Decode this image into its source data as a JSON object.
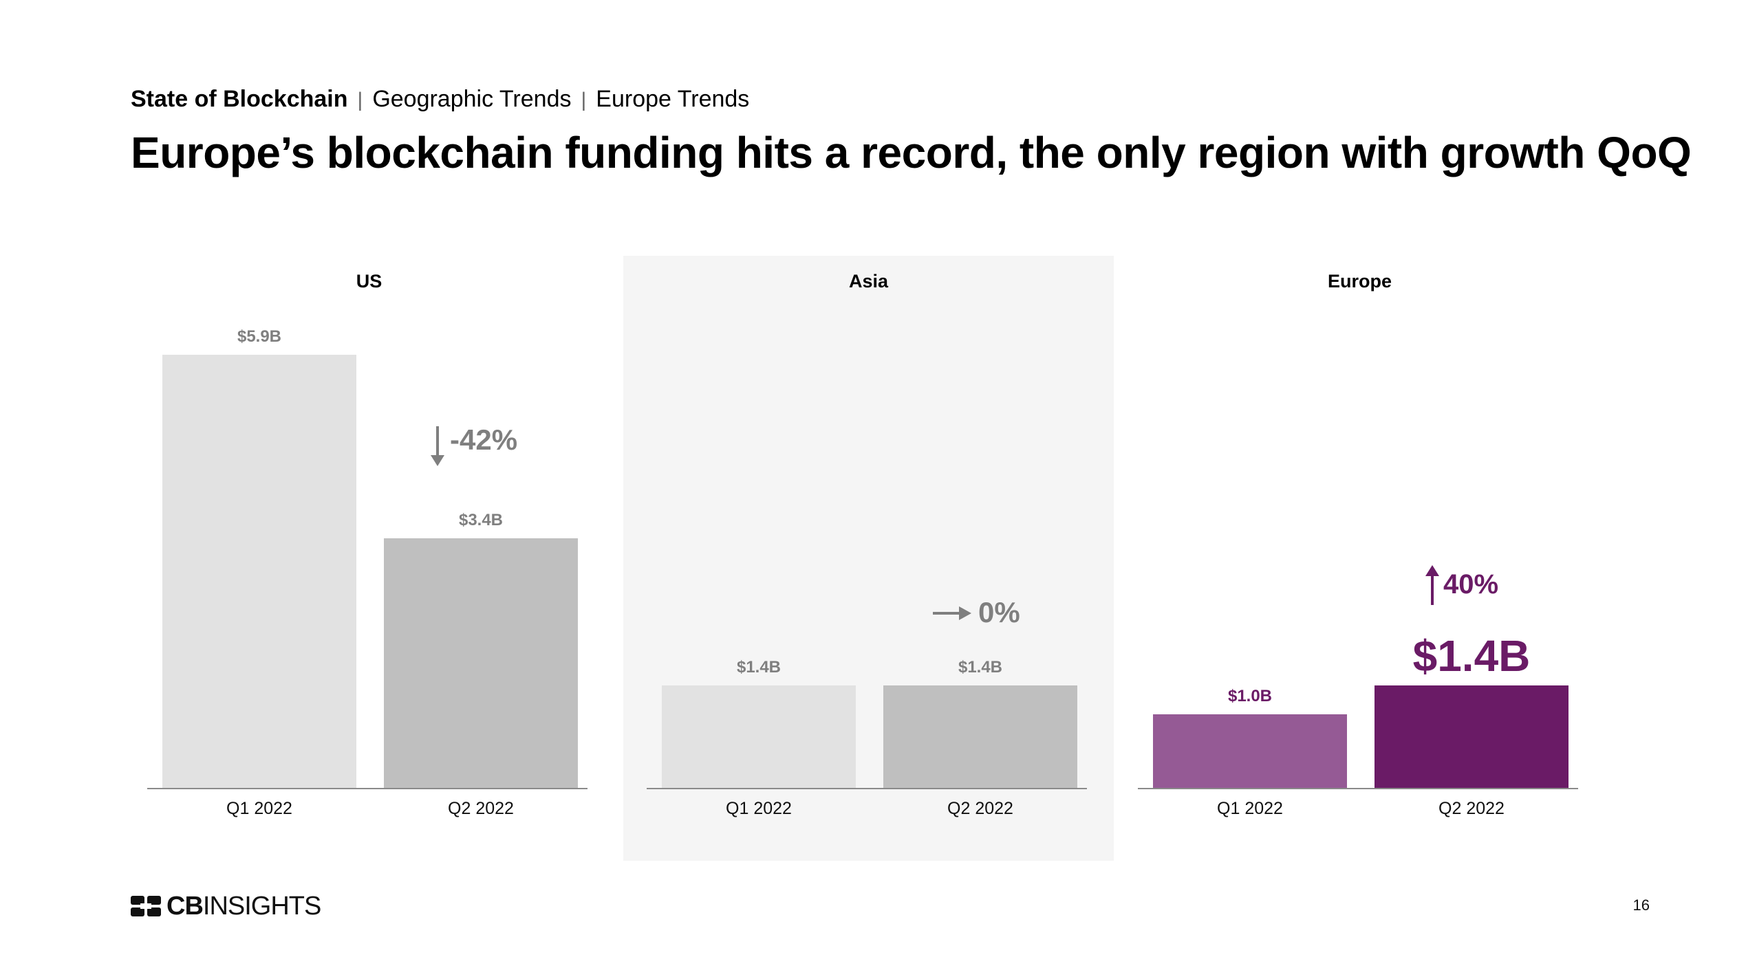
{
  "breadcrumb": {
    "main": "State of Blockchain",
    "separator": "|",
    "level2": "Geographic Trends",
    "level3": "Europe Trends"
  },
  "title": "Europe’s blockchain funding hits a record, the only region with growth QoQ",
  "chart_data": [
    {
      "type": "bar",
      "title": "US",
      "categories": [
        "Q1 2022",
        "Q2 2022"
      ],
      "values": [
        5.9,
        3.4
      ],
      "value_labels": [
        "$5.9B",
        "$3.4B"
      ],
      "unit": "$B",
      "ylim": [
        0,
        5.9
      ],
      "change": "-42%",
      "change_direction": "down",
      "colors": [
        "#e2e2e2",
        "#bfbfbf"
      ],
      "label_color": "#7f7f7f"
    },
    {
      "type": "bar",
      "title": "Asia",
      "categories": [
        "Q1 2022",
        "Q2 2022"
      ],
      "values": [
        1.4,
        1.4
      ],
      "value_labels": [
        "$1.4B",
        "$1.4B"
      ],
      "unit": "$B",
      "ylim": [
        0,
        5.9
      ],
      "change": "0%",
      "change_direction": "flat",
      "colors": [
        "#e2e2e2",
        "#bfbfbf"
      ],
      "label_color": "#7f7f7f"
    },
    {
      "type": "bar",
      "title": "Europe",
      "categories": [
        "Q1 2022",
        "Q2 2022"
      ],
      "values": [
        1.0,
        1.4
      ],
      "value_labels": [
        "$1.0B",
        "$1.4B"
      ],
      "unit": "$B",
      "ylim": [
        0,
        5.9
      ],
      "change": "40%",
      "change_direction": "up",
      "colors": [
        "#955a95",
        "#6a1b66"
      ],
      "label_color": "#6a1b66"
    }
  ],
  "footer": {
    "logo_bold": "CB",
    "logo_rest": "INSIGHTS",
    "page_number": "16"
  }
}
